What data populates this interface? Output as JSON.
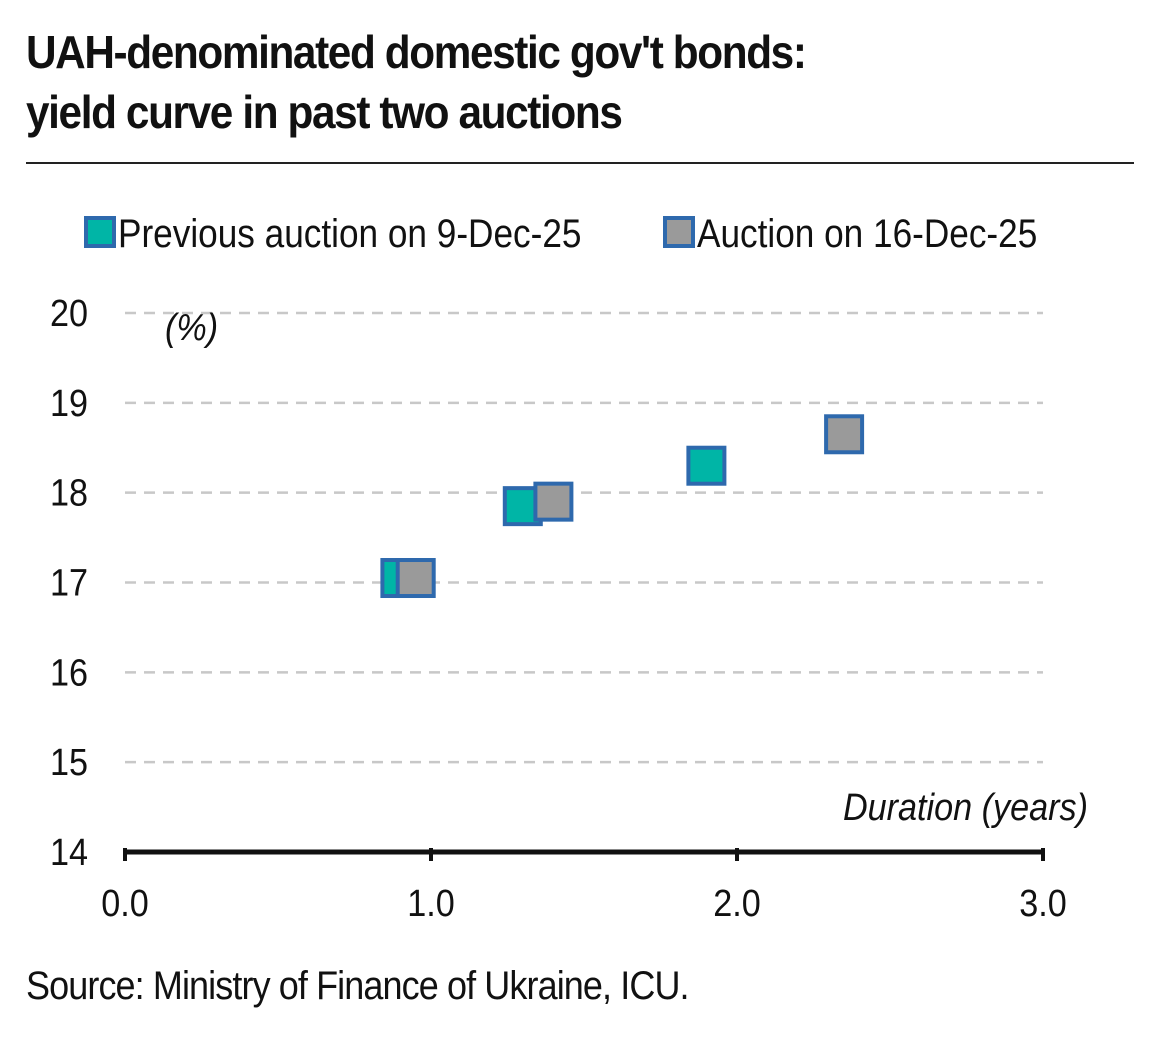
{
  "title_line1": "UAH-denominated domestic gov't bonds:",
  "title_line2": "yield curve in past two auctions",
  "source": "Source: Ministry of Finance of Ukraine, ICU.",
  "colors": {
    "previous_fill": "#00b5a6",
    "current_fill": "#9a9a9a",
    "marker_border": "#2e69ad",
    "grid": "#c8c8c8",
    "axis": "#111111"
  },
  "chart_data": {
    "type": "scatter",
    "ylabel": "(%)",
    "xlabel": "Duration (years)",
    "xlim": [
      0,
      3
    ],
    "ylim": [
      14,
      20
    ],
    "x_ticks": [
      "0.0",
      "1.0",
      "2.0",
      "3.0"
    ],
    "y_ticks": [
      "20",
      "19",
      "18",
      "17",
      "16",
      "15",
      "14"
    ],
    "grid": "horizontal dashed",
    "legend_position": "top",
    "series": [
      {
        "name": "Previous auction on 9-Dec-25",
        "color_key": "previous_fill",
        "points": [
          {
            "x": 0.9,
            "y": 17.05
          },
          {
            "x": 1.3,
            "y": 17.85
          },
          {
            "x": 1.9,
            "y": 18.3
          }
        ]
      },
      {
        "name": "Auction on 16-Dec-25",
        "color_key": "current_fill",
        "points": [
          {
            "x": 0.95,
            "y": 17.05
          },
          {
            "x": 1.4,
            "y": 17.9
          },
          {
            "x": 2.35,
            "y": 18.65
          }
        ]
      }
    ]
  }
}
